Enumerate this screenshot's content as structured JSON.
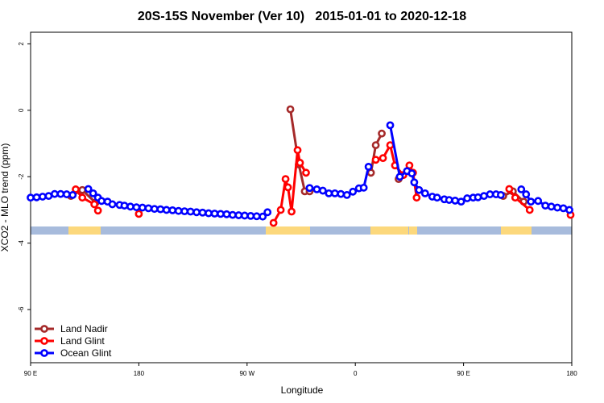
{
  "chart_data": {
    "type": "line",
    "title": "20S-15S November (Ver 10)   2015-01-01 to 2020-12-18",
    "x_label": "Longitude",
    "y_label": "XCO2 - MLO trend (ppm)",
    "xlim": [
      90,
      540
    ],
    "ylim": [
      -7.6,
      2.35
    ],
    "xticks": [
      {
        "value": 90,
        "label": "90 E"
      },
      {
        "value": 180,
        "label": "180"
      },
      {
        "value": 270,
        "label": "90 W"
      },
      {
        "value": 360,
        "label": "0"
      },
      {
        "value": 450,
        "label": "90 E"
      },
      {
        "value": 540,
        "label": "180"
      }
    ],
    "yticks": [
      2,
      0,
      -2,
      -4,
      -6
    ],
    "legend": "bottom-left",
    "series": [
      {
        "name": "Land Nadir",
        "color": "#a52a2a",
        "x": [
          123.5,
          133,
          144,
          306,
          313,
          318,
          322,
          373,
          377,
          382,
          396,
          483,
          491,
          500
        ],
        "values": [
          -2.58,
          -2.4,
          -2.78,
          0.03,
          -1.63,
          -2.44,
          -2.44,
          -1.88,
          -1.05,
          -0.7,
          -2.07,
          -2.58,
          -2.44,
          -2.75
        ]
      },
      {
        "name": "Land Glint",
        "color": "#ff0000",
        "x": [
          127.5,
          133,
          143,
          146,
          180,
          292,
          298,
          302,
          304,
          307,
          312,
          314,
          319,
          377,
          383,
          389,
          393,
          400,
          405,
          408,
          411,
          488,
          493,
          505,
          539
        ],
        "values": [
          -2.38,
          -2.63,
          -2.83,
          -3.02,
          -3.12,
          -3.39,
          -3.0,
          -2.07,
          -2.32,
          -3.05,
          -1.2,
          -1.58,
          -1.88,
          -1.49,
          -1.44,
          -1.05,
          -1.66,
          -1.95,
          -1.66,
          -1.88,
          -2.63,
          -2.37,
          -2.63,
          -3.0,
          -3.15
        ]
      },
      {
        "name": "Ocean Glint",
        "color": "#0000ff",
        "x": [
          90,
          95,
          100,
          105,
          110,
          115,
          120,
          125,
          138,
          142,
          146,
          149,
          154,
          158,
          164,
          168,
          173,
          178,
          183,
          188,
          193,
          198,
          203,
          208,
          213,
          218,
          223,
          228,
          233,
          238,
          243,
          248,
          253,
          258,
          263,
          268,
          273,
          278,
          283,
          287,
          322,
          328,
          333,
          338,
          343,
          348,
          353,
          358,
          363,
          367,
          371,
          389,
          397,
          403,
          407,
          409,
          413,
          418,
          424,
          428,
          434,
          438,
          443,
          448,
          453,
          458,
          462,
          467,
          472,
          477,
          481,
          498,
          502,
          506,
          512,
          518,
          523,
          528,
          533,
          538
        ],
        "values": [
          -2.63,
          -2.62,
          -2.6,
          -2.58,
          -2.52,
          -2.52,
          -2.53,
          -2.55,
          -2.37,
          -2.5,
          -2.63,
          -2.73,
          -2.75,
          -2.83,
          -2.85,
          -2.87,
          -2.9,
          -2.92,
          -2.93,
          -2.95,
          -2.97,
          -2.98,
          -3.0,
          -3.01,
          -3.03,
          -3.04,
          -3.05,
          -3.07,
          -3.08,
          -3.1,
          -3.11,
          -3.12,
          -3.13,
          -3.15,
          -3.16,
          -3.17,
          -3.18,
          -3.19,
          -3.2,
          -3.07,
          -2.34,
          -2.38,
          -2.42,
          -2.5,
          -2.5,
          -2.52,
          -2.55,
          -2.45,
          -2.35,
          -2.33,
          -1.7,
          -0.45,
          -2.0,
          -1.83,
          -1.9,
          -2.17,
          -2.4,
          -2.5,
          -2.6,
          -2.63,
          -2.68,
          -2.7,
          -2.72,
          -2.75,
          -2.65,
          -2.63,
          -2.62,
          -2.58,
          -2.53,
          -2.53,
          -2.55,
          -2.38,
          -2.53,
          -2.75,
          -2.73,
          -2.87,
          -2.9,
          -2.93,
          -2.95,
          -3.0
        ]
      }
    ]
  }
}
